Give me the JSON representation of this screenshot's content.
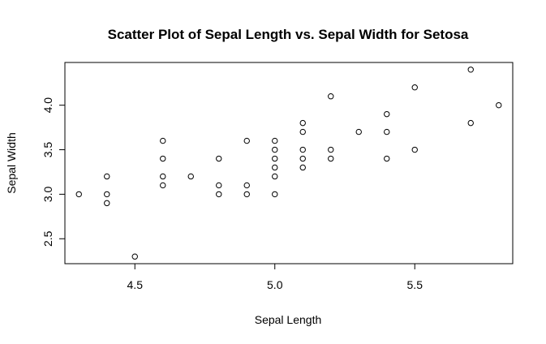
{
  "chart_data": {
    "type": "scatter",
    "title": "Scatter Plot of Sepal Length vs. Sepal Width for Setosa",
    "xlabel": "Sepal Length",
    "ylabel": "Sepal Width",
    "xlim": [
      4.25,
      5.85
    ],
    "ylim": [
      2.22,
      4.48
    ],
    "xticks": [
      4.5,
      5.0,
      5.5
    ],
    "xtick_labels": [
      "4.5",
      "5.0",
      "5.5"
    ],
    "yticks": [
      2.5,
      3.0,
      3.5,
      4.0
    ],
    "ytick_labels": [
      "2.5",
      "3.0",
      "3.5",
      "4.0"
    ],
    "grid": false,
    "marker": "open-circle",
    "color": "#000000",
    "points": [
      {
        "x": 4.3,
        "y": 3.0
      },
      {
        "x": 4.4,
        "y": 3.2
      },
      {
        "x": 4.4,
        "y": 3.0
      },
      {
        "x": 4.4,
        "y": 2.9
      },
      {
        "x": 4.5,
        "y": 2.3
      },
      {
        "x": 4.6,
        "y": 3.6
      },
      {
        "x": 4.6,
        "y": 3.4
      },
      {
        "x": 4.6,
        "y": 3.2
      },
      {
        "x": 4.6,
        "y": 3.1
      },
      {
        "x": 4.7,
        "y": 3.2
      },
      {
        "x": 4.8,
        "y": 3.4
      },
      {
        "x": 4.8,
        "y": 3.1
      },
      {
        "x": 4.8,
        "y": 3.0
      },
      {
        "x": 4.9,
        "y": 3.6
      },
      {
        "x": 4.9,
        "y": 3.1
      },
      {
        "x": 4.9,
        "y": 3.0
      },
      {
        "x": 5.0,
        "y": 3.6
      },
      {
        "x": 5.0,
        "y": 3.5
      },
      {
        "x": 5.0,
        "y": 3.4
      },
      {
        "x": 5.0,
        "y": 3.3
      },
      {
        "x": 5.0,
        "y": 3.2
      },
      {
        "x": 5.0,
        "y": 3.0
      },
      {
        "x": 5.1,
        "y": 3.8
      },
      {
        "x": 5.1,
        "y": 3.7
      },
      {
        "x": 5.1,
        "y": 3.5
      },
      {
        "x": 5.1,
        "y": 3.4
      },
      {
        "x": 5.1,
        "y": 3.3
      },
      {
        "x": 5.2,
        "y": 4.1
      },
      {
        "x": 5.2,
        "y": 3.5
      },
      {
        "x": 5.2,
        "y": 3.4
      },
      {
        "x": 5.3,
        "y": 3.7
      },
      {
        "x": 5.4,
        "y": 3.9
      },
      {
        "x": 5.4,
        "y": 3.7
      },
      {
        "x": 5.4,
        "y": 3.4
      },
      {
        "x": 5.5,
        "y": 4.2
      },
      {
        "x": 5.5,
        "y": 3.5
      },
      {
        "x": 5.7,
        "y": 4.4
      },
      {
        "x": 5.7,
        "y": 3.8
      },
      {
        "x": 5.8,
        "y": 4.0
      }
    ]
  }
}
